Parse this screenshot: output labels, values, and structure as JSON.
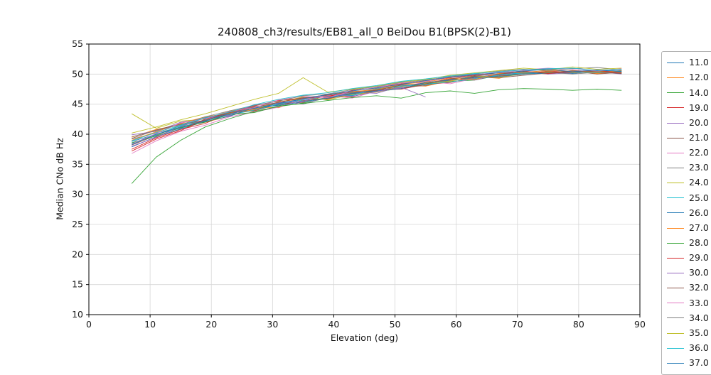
{
  "title": "240808_ch3/results/EB81_all_0 BeiDou B1(BPSK(2)-B1)",
  "chart_data": {
    "type": "line",
    "title": "240808_ch3/results/EB81_all_0 BeiDou B1(BPSK(2)-B1)",
    "xlabel": "Elevation (deg)",
    "ylabel": "Median CNo dB Hz",
    "xlim": [
      0,
      90
    ],
    "ylim": [
      10,
      55
    ],
    "xticks": [
      0,
      10,
      20,
      30,
      40,
      50,
      60,
      70,
      80,
      90
    ],
    "yticks": [
      10,
      15,
      20,
      25,
      30,
      35,
      40,
      45,
      50,
      55
    ],
    "grid": true,
    "grid_color": "#d6d6d6",
    "legend_position": "right-outside",
    "x": [
      7,
      11,
      15,
      19,
      23,
      27,
      31,
      35,
      39,
      43,
      47,
      51,
      55,
      59,
      63,
      67,
      71,
      75,
      79,
      83,
      87
    ],
    "series": [
      {
        "name": "11.0",
        "color": "#1f77b4",
        "values": [
          38.8,
          40.0,
          41.0,
          42.3,
          43.5,
          44.0,
          45.2,
          45.8,
          46.3,
          46.4,
          47.5,
          47.9,
          48.6,
          49.0,
          49.4,
          50.0,
          50.2,
          50.4,
          50.1,
          50.5,
          50.2
        ]
      },
      {
        "name": "12.0",
        "color": "#ff7f0e",
        "values": [
          39.5,
          40.8,
          41.6,
          42.0,
          43.0,
          44.5,
          44.4,
          45.9,
          45.8,
          46.9,
          47.0,
          48.2,
          48.0,
          48.9,
          49.6,
          49.3,
          50.3,
          50.0,
          50.6,
          50.1,
          50.4
        ]
      },
      {
        "name": "14.0",
        "color": "#2ca02c",
        "values": [
          31.8,
          36.2,
          39.0,
          41.2,
          42.6,
          43.8,
          44.6,
          45.2,
          46.0,
          46.8,
          47.1,
          47.6,
          48.4,
          48.8,
          49.0,
          49.8,
          50.1,
          50.3,
          50.5,
          50.2,
          50.6
        ]
      },
      {
        "name": "19.0",
        "color": "#d62728",
        "values": [
          37.5,
          39.4,
          40.8,
          41.8,
          43.6,
          43.9,
          45.0,
          45.3,
          46.5,
          46.2,
          47.4,
          47.5,
          48.3,
          48.6,
          49.5,
          49.7,
          50.0,
          50.5,
          50.3,
          50.6,
          50.3
        ]
      },
      {
        "name": "20.0",
        "color": "#9467bd",
        "values": [
          39.9,
          40.5,
          42.0,
          42.6,
          43.1,
          44.8,
          45.5,
          45.0,
          46.2,
          47.0,
          46.8,
          48.0,
          48.5,
          49.2,
          49.0,
          49.9,
          50.4,
          50.0,
          50.2,
          50.4,
          50.0
        ]
      },
      {
        "name": "21.0",
        "color": "#8c564b",
        "values": [
          38.2,
          39.8,
          41.5,
          42.2,
          43.8,
          44.2,
          44.9,
          45.6,
          45.9,
          46.7,
          47.3,
          47.8,
          48.1,
          49.0,
          49.6,
          49.4,
          49.8,
          50.2,
          50.5,
          50.0,
          50.3
        ]
      },
      {
        "name": "22.0",
        "color": "#e377c2",
        "values": [
          36.8,
          38.9,
          40.5,
          41.5,
          42.9,
          43.7,
          44.5,
          45.8,
          46.4,
          46.0,
          47.2,
          47.7,
          48.8,
          48.4,
          49.3,
          50.0,
          50.6,
          50.9,
          50.4,
          50.7,
          50.2
        ]
      },
      {
        "name": "23.0",
        "color": "#7f7f7f",
        "values": [
          39.2,
          40.2,
          41.2,
          42.8,
          43.4,
          44.6,
          45.1,
          45.5,
          46.1,
          46.9,
          47.6,
          48.1,
          48.2,
          49.1,
          49.3,
          49.9,
          50.1,
          50.3,
          50.0,
          50.3,
          50.1
        ]
      },
      {
        "name": "24.0",
        "color": "#bcbd22",
        "values": [
          43.4,
          41.0,
          42.2,
          42.5,
          43.9,
          44.3,
          45.3,
          46.2,
          45.7,
          46.6,
          47.0,
          47.9,
          48.5,
          48.8,
          49.7,
          49.5,
          50.0,
          50.4,
          50.2,
          50.5,
          50.3
        ]
      },
      {
        "name": "25.0",
        "color": "#17becf",
        "values": [
          38.5,
          39.9,
          41.4,
          42.4,
          43.2,
          44.0,
          45.0,
          45.7,
          46.3,
          46.5,
          47.5,
          48.0,
          48.3,
          48.7,
          49.2,
          49.8,
          50.2,
          50.1,
          50.4,
          50.2,
          50.5
        ]
      },
      {
        "name": "26.0",
        "color": "#1f77b4",
        "values": [
          37.9,
          39.6,
          40.9,
          42.1,
          43.0,
          44.4,
          44.8,
          45.4,
          46.0,
          46.8,
          47.2,
          47.6,
          48.6,
          49.0,
          49.5,
          49.6,
          50.0,
          50.2,
          50.3,
          50.6,
          50.4
        ]
      },
      {
        "name": "27.0",
        "color": "#ff7f0e",
        "values": [
          39.0,
          40.4,
          41.8,
          42.9,
          43.5,
          44.1,
          45.4,
          45.9,
          46.6,
          47.1,
          47.4,
          48.3,
          48.7,
          49.3,
          49.1,
          50.1,
          50.3,
          50.6,
          50.5,
          50.3,
          50.6
        ]
      },
      {
        "name": "28.0",
        "color": "#2ca02c",
        "values": [
          38.6,
          39.7,
          41.1,
          42.0,
          43.3,
          43.6,
          44.7,
          45.1,
          45.6,
          46.1,
          46.4,
          46.0,
          46.9,
          47.2,
          46.8,
          47.4,
          47.6,
          47.5,
          47.3,
          47.5,
          47.3
        ]
      },
      {
        "name": "29.0",
        "color": "#d62728",
        "values": [
          37.2,
          39.2,
          40.6,
          42.5,
          43.7,
          44.7,
          45.6,
          46.0,
          46.2,
          47.3,
          47.7,
          48.4,
          48.9,
          49.4,
          49.8,
          50.2,
          50.5,
          50.1,
          50.4,
          50.6,
          50.2
        ]
      },
      {
        "name": "30.0",
        "color": "#9467bd",
        "values": [
          38.0,
          39.5,
          41.3,
          42.7,
          43.2,
          44.9,
          45.2,
          45.5,
          46.7,
          46.3,
          47.1,
          47.8,
          46.2
        ]
      },
      {
        "name": "32.0",
        "color": "#8c564b",
        "values": [
          39.3,
          40.7,
          41.7,
          42.3,
          43.6,
          44.5,
          45.3,
          46.1,
          46.5,
          47.0,
          47.3,
          48.2,
          48.4,
          49.2,
          49.7,
          50.0,
          50.4,
          50.2,
          50.6,
          50.4,
          50.1
        ]
      },
      {
        "name": "33.0",
        "color": "#e377c2",
        "values": [
          38.4,
          40.1,
          41.9,
          42.6,
          43.8,
          44.4,
          45.7,
          46.3,
          46.1,
          47.2,
          47.8,
          48.5,
          48.8,
          49.5,
          49.9,
          50.3,
          50.7,
          51.0,
          50.8,
          50.5,
          50.9
        ]
      },
      {
        "name": "34.0",
        "color": "#7f7f7f",
        "values": [
          39.6,
          40.6,
          41.6,
          42.9,
          43.9,
          44.8,
          45.5,
          46.4,
          46.7,
          47.4,
          47.9,
          48.6,
          49.0,
          49.6,
          50.0,
          50.5,
          50.8,
          50.6,
          50.9,
          51.1,
          50.7
        ]
      },
      {
        "name": "35.0",
        "color": "#bcbd22",
        "values": [
          40.2,
          41.2,
          42.4,
          43.4,
          44.6,
          45.8,
          46.8,
          49.4,
          47.0,
          47.5,
          48.0,
          48.7,
          49.1,
          49.8,
          50.2,
          50.6,
          51.0,
          50.7,
          51.2,
          50.8,
          51.0
        ]
      },
      {
        "name": "36.0",
        "color": "#17becf",
        "values": [
          38.9,
          40.3,
          41.5,
          42.7,
          43.7,
          44.9,
          45.8,
          46.5,
          46.9,
          47.6,
          48.1,
          48.8,
          49.2,
          49.7,
          50.1,
          50.4,
          50.7,
          50.9,
          51.0,
          50.6,
          50.8
        ]
      },
      {
        "name": "37.0",
        "color": "#1f77b4",
        "values": [
          38.3,
          40.0,
          41.2,
          42.2,
          43.4,
          44.3,
          45.1,
          45.9,
          46.6,
          47.2,
          47.7,
          48.3,
          48.9,
          49.5,
          49.9,
          50.2,
          50.5,
          50.8,
          50.4,
          50.7,
          50.5
        ]
      }
    ]
  }
}
